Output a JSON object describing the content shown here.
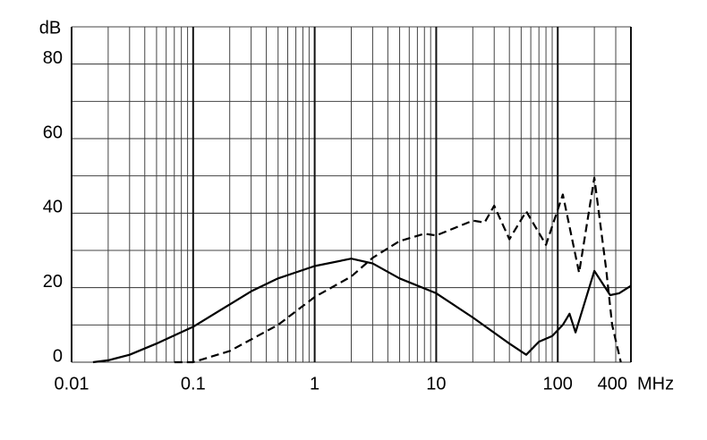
{
  "chart_data": {
    "type": "line",
    "y_label": "dB",
    "x_label": "MHz",
    "x_scale": "log",
    "xlim": [
      0.01,
      400
    ],
    "ylim": [
      0,
      90
    ],
    "xticks": [
      0.01,
      0.1,
      1,
      10,
      100,
      400
    ],
    "x_minor_ticks": [
      0.02,
      0.03,
      0.04,
      0.05,
      0.06,
      0.07,
      0.08,
      0.09,
      0.2,
      0.3,
      0.4,
      0.5,
      0.6,
      0.7,
      0.8,
      0.9,
      2,
      3,
      4,
      5,
      6,
      7,
      8,
      9,
      20,
      30,
      40,
      50,
      60,
      70,
      80,
      90,
      200,
      300
    ],
    "yticks": [
      0,
      20,
      40,
      60,
      80
    ],
    "y_minor_ticks": [
      10,
      30,
      50,
      70,
      90
    ],
    "grid": true,
    "series": [
      {
        "color": "#000000",
        "dash": "solid",
        "x": [
          0.015,
          0.02,
          0.03,
          0.05,
          0.1,
          0.2,
          0.3,
          0.5,
          1,
          2,
          3,
          5,
          10,
          20,
          40,
          55,
          70,
          90,
          110,
          125,
          140,
          200,
          270,
          320,
          400
        ],
        "values": [
          0,
          0.5,
          2,
          5,
          9.5,
          15.5,
          19,
          22.5,
          25.8,
          27.8,
          26.5,
          22.5,
          18.5,
          12,
          5,
          2,
          5.5,
          7,
          10,
          13,
          8,
          24.5,
          18,
          18.5,
          20.5
        ]
      },
      {
        "color": "#000000",
        "dash": "dashed",
        "x": [
          0.07,
          0.1,
          0.2,
          0.5,
          1,
          2,
          3,
          5,
          8,
          10,
          20,
          25,
          30,
          40,
          55,
          80,
          110,
          150,
          200,
          250,
          280,
          330
        ],
        "values": [
          0,
          0,
          3,
          10,
          17.5,
          23,
          28,
          32.5,
          34.5,
          34,
          38,
          37.5,
          42,
          33,
          40.5,
          31.5,
          45,
          24,
          49.5,
          25,
          10,
          0
        ]
      }
    ]
  }
}
